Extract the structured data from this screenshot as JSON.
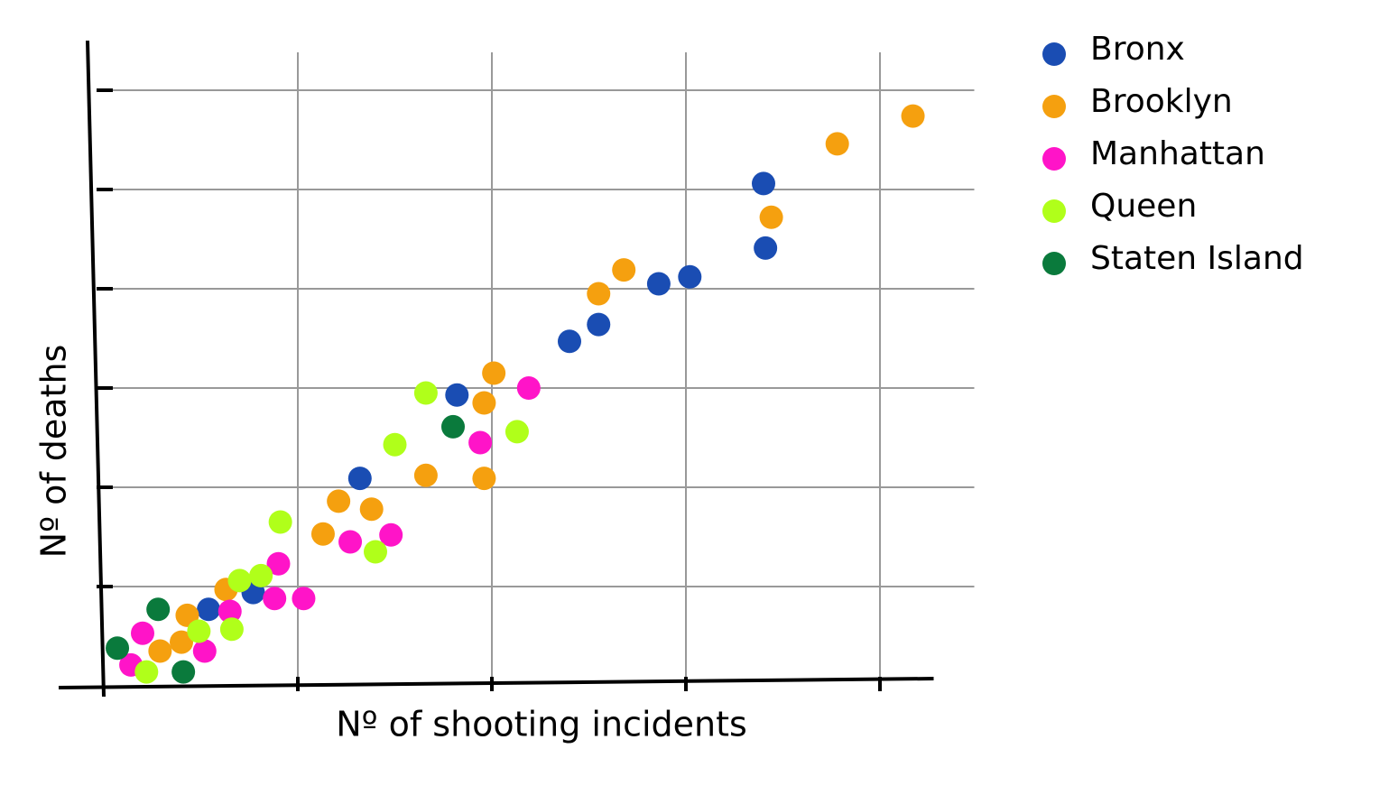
{
  "chart_data": {
    "type": "scatter",
    "x_label": "Nº of shooting incidents",
    "y_label": "Nº of deaths",
    "xlim": [
      0,
      4.3
    ],
    "ylim": [
      0,
      6.2
    ],
    "xticks": [
      1,
      2,
      3,
      4
    ],
    "yticks": [
      1,
      2,
      3,
      4,
      5,
      6
    ],
    "grid": true,
    "legend": "right",
    "series": [
      {
        "name": "Bronx",
        "color": "#1a4db3",
        "x": [
          3.4,
          3.41,
          3.02,
          2.86,
          2.55,
          2.4,
          1.82,
          1.32,
          0.77,
          0.54
        ],
        "values": [
          5.06,
          4.41,
          4.12,
          4.05,
          3.64,
          3.47,
          2.93,
          2.09,
          0.94,
          0.77
        ]
      },
      {
        "name": "Brooklyn",
        "color": "#f5a00f",
        "x": [
          4.17,
          3.78,
          3.44,
          2.68,
          2.55,
          2.01,
          1.96,
          1.66,
          1.96,
          1.21,
          1.38,
          1.13,
          0.63,
          0.43,
          0.4,
          0.29
        ],
        "values": [
          5.74,
          5.46,
          4.72,
          4.19,
          3.95,
          3.15,
          2.85,
          2.12,
          2.09,
          1.86,
          1.78,
          1.53,
          0.97,
          0.71,
          0.44,
          0.35
        ]
      },
      {
        "name": "Manhattan",
        "color": "#ff14c8",
        "x": [
          2.19,
          1.94,
          1.48,
          1.27,
          1.03,
          0.88,
          0.9,
          0.65,
          0.52,
          0.2,
          0.14
        ],
        "values": [
          3.0,
          2.45,
          1.52,
          1.45,
          0.88,
          0.88,
          1.23,
          0.75,
          0.35,
          0.53,
          0.21
        ]
      },
      {
        "name": "Queen",
        "color": "#b0ff1a",
        "x": [
          1.66,
          2.13,
          1.5,
          0.91,
          1.4,
          0.7,
          0.81,
          0.49,
          0.66,
          0.22
        ],
        "values": [
          2.95,
          2.56,
          2.43,
          1.65,
          1.35,
          1.06,
          1.11,
          0.55,
          0.57,
          0.14
        ]
      },
      {
        "name": "Staten Island",
        "color": "#0a7a3c",
        "x": [
          1.8,
          0.28,
          0.07,
          0.41
        ],
        "values": [
          2.61,
          0.77,
          0.38,
          0.14
        ]
      }
    ]
  }
}
